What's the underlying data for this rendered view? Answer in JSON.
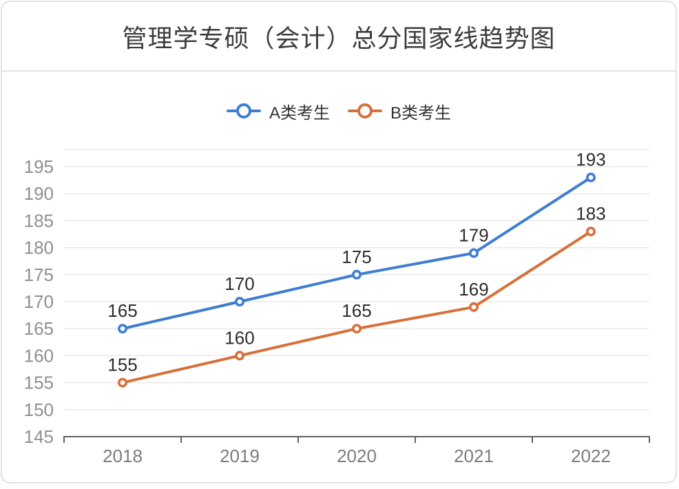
{
  "chart_data": {
    "type": "line",
    "title": "管理学专硕（会计）总分国家线趋势图",
    "categories": [
      "2018",
      "2019",
      "2020",
      "2021",
      "2022"
    ],
    "series": [
      {
        "name": "A类考生",
        "color": "#3e7dd1",
        "values": [
          165,
          170,
          175,
          179,
          193
        ]
      },
      {
        "name": "B类考生",
        "color": "#d7703a",
        "values": [
          155,
          160,
          165,
          169,
          183
        ]
      }
    ],
    "yticks": [
      145,
      150,
      155,
      160,
      165,
      170,
      175,
      180,
      185,
      190,
      195
    ],
    "ylim": [
      145,
      198
    ],
    "xlabel": "",
    "ylabel": "",
    "grid": true,
    "data_labels": true,
    "legend_position": "top",
    "marker": "hollow-circle",
    "colors": {
      "grid_line": "#e8e8e8",
      "axis_line": "#5f5f5f",
      "y_tick_label": "#8f8f8f",
      "x_tick_label": "#7d7d7d",
      "data_label": "#2d2d2d",
      "title": "#3c3c3c"
    }
  }
}
